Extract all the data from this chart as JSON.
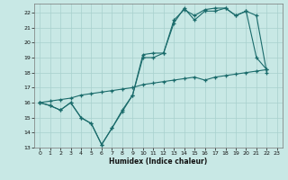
{
  "xlabel": "Humidex (Indice chaleur)",
  "background_color": "#c8e8e5",
  "grid_color": "#a8d0cd",
  "line_color": "#1a6b6b",
  "xlim": [
    -0.5,
    23.5
  ],
  "ylim": [
    13,
    22.6
  ],
  "yticks": [
    13,
    14,
    15,
    16,
    17,
    18,
    19,
    20,
    21,
    22
  ],
  "xticks": [
    0,
    1,
    2,
    3,
    4,
    5,
    6,
    7,
    8,
    9,
    10,
    11,
    12,
    13,
    14,
    15,
    16,
    17,
    18,
    19,
    20,
    21,
    22,
    23
  ],
  "x": [
    0,
    1,
    2,
    3,
    4,
    5,
    6,
    7,
    8,
    9,
    10,
    11,
    12,
    13,
    14,
    15,
    16,
    17,
    18,
    19,
    20,
    21,
    22
  ],
  "line1": [
    16.0,
    15.8,
    15.5,
    16.0,
    15.0,
    14.6,
    13.2,
    14.3,
    15.4,
    16.5,
    19.2,
    19.3,
    19.3,
    21.5,
    22.2,
    21.8,
    22.2,
    22.3,
    22.3,
    21.8,
    22.1,
    19.0,
    18.2
  ],
  "line2": [
    16.0,
    15.8,
    15.5,
    16.0,
    15.0,
    14.6,
    13.2,
    14.3,
    15.5,
    16.5,
    19.0,
    19.0,
    19.3,
    21.3,
    22.3,
    21.5,
    22.1,
    22.1,
    22.3,
    21.8,
    22.1,
    21.8,
    18.0
  ],
  "line3": [
    16.0,
    16.1,
    16.2,
    16.3,
    16.5,
    16.6,
    16.7,
    16.8,
    16.9,
    17.0,
    17.2,
    17.3,
    17.4,
    17.5,
    17.6,
    17.7,
    17.5,
    17.7,
    17.8,
    17.9,
    18.0,
    18.1,
    18.2
  ]
}
